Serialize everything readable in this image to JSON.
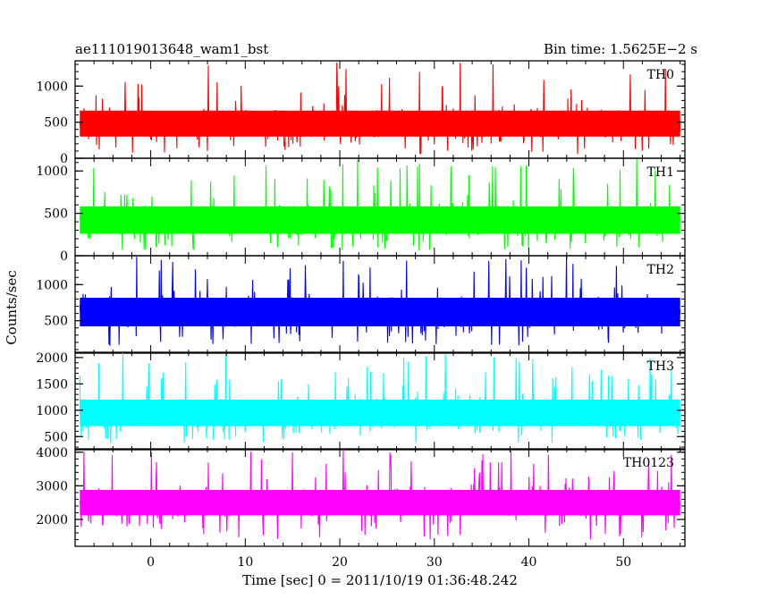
{
  "chart_data": {
    "type": "line",
    "title_left": "ae111019013648_wam1_bst",
    "title_right": "Bin time: 1.5625E−2 s",
    "xlabel": "Time [sec] 0 = 2011/10/19 01:36:48.242",
    "ylabel": "Counts/sec",
    "xlim": [
      -8.0,
      56.5
    ],
    "x_ticks": [
      0,
      10,
      20,
      30,
      40,
      50
    ],
    "x_start": -7.5,
    "x_end": 56,
    "bin_time": 0.015625,
    "panels": [
      {
        "name": "TH0",
        "color": "#ff0000",
        "ylim": [
          0,
          1350
        ],
        "y_ticks": [
          0,
          500,
          1000
        ],
        "mean": 480,
        "spread": 200,
        "min": 50,
        "max": 1350
      },
      {
        "name": "TH1",
        "color": "#00ff00",
        "ylim": [
          0,
          1150
        ],
        "y_ticks": [
          0,
          500,
          1000
        ],
        "mean": 420,
        "spread": 180,
        "min": 60,
        "max": 1150
      },
      {
        "name": "TH2",
        "color": "#0000ff",
        "ylim": [
          50,
          1400
        ],
        "y_ticks": [
          500,
          1000
        ],
        "mean": 620,
        "spread": 220,
        "min": 150,
        "max": 1400
      },
      {
        "name": "TH3",
        "color": "#00ffff",
        "ylim": [
          250,
          2100
        ],
        "y_ticks": [
          500,
          1000,
          1500,
          2000
        ],
        "mean": 950,
        "spread": 280,
        "min": 380,
        "max": 2100
      },
      {
        "name": "TH0123",
        "color": "#ff00ff",
        "ylim": [
          1200,
          4100
        ],
        "y_ticks": [
          2000,
          3000,
          4000
        ],
        "mean": 2500,
        "spread": 420,
        "min": 1400,
        "max": 4100
      }
    ]
  }
}
